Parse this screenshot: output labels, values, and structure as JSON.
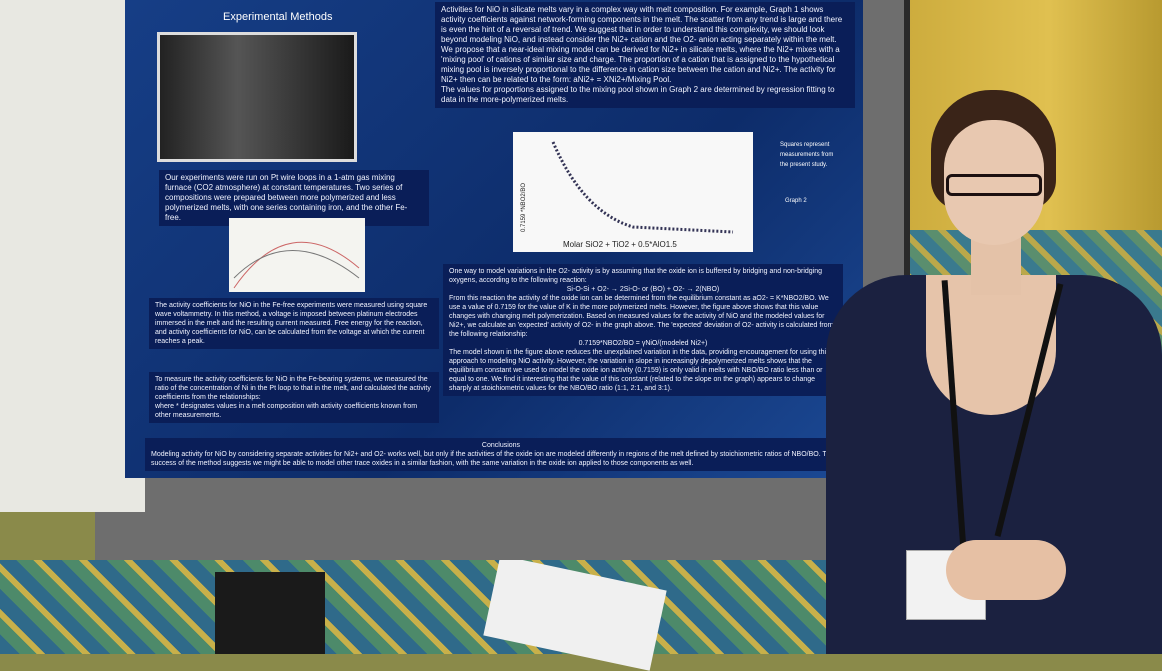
{
  "poster": {
    "section_title": "Experimental Methods",
    "intro": "Activities for NiO in silicate melts vary in a complex way with melt composition. For example, Graph 1 shows activity coefficients against network-forming components in the melt. The scatter from any trend is large and there is even the hint of a reversal of trend. We suggest that in order to understand this complexity, we should look beyond modeling NiO, and instead consider the Ni2+ cation and the O2- anion acting separately within the melt.",
    "model": "We propose that a near-ideal mixing model can be derived for Ni2+ in silicate melts, where the Ni2+ mixes with a 'mixing pool' of cations of similar size and charge. The proportion of a cation that is assigned to the hypothetical mixing pool is inversely proportional to the difference in cation size between the cation and Ni2+. The activity for Ni2+ then can be related to the form: aNi2+ = XNi2+/Mixing Pool.",
    "regression": "The values for proportions assigned to the mixing pool shown in Graph 2 are determined by regression fitting to data in the more-polymerized melts.",
    "methods": "Our experiments were run on Pt wire loops in a 1-atm gas mixing furnace (CO2 atmosphere) at constant temperatures. Two series of compositions were prepared between more polymerized and less polymerized melts, with one series containing iron, and the other Fe-free.",
    "voltammetry": "The activity coefficients for NiO in the Fe-free experiments were measured using square wave voltammetry. In this method, a voltage is imposed between platinum electrodes immersed in the melt and the resulting current measured. Free energy for the reaction, and activity coefficients for NiO, can be calculated from the voltage at which the current reaches a peak.",
    "fe_bearing": "To measure the activity coefficients for NiO in the Fe-bearing systems, we measured the ratio of the concentration of Ni in the Pt loop to that in the melt, and calculated the activity coefficients from the relationships:",
    "fe_note": "where * designates values in a melt composition with activity coefficients known from other measurements.",
    "oxide": "One way to model variations in the O2- activity is by assuming that the oxide ion is buffered by bridging and non-bridging oxygens, according to the following reaction:",
    "reaction": "Si-O-Si + O2- → 2Si-O- or (BO) + O2- → 2(NBO)",
    "oxide2": "From this reaction the activity of the oxide ion can be determined from the equilibrium constant as aO2- = K*NBO2/BO. We use a value of 0.7159 for the value of K in the more polymerized melts. However, the figure above shows that this value changes with changing melt polymerization. Based on measured values for the activity of NiO and the modeled values for Ni2+, we calculate an 'expected' activity of O2- in the graph above. The 'expected' deviation of O2- activity is calculated from the following relationship:",
    "equation": "0.7159*NBO2/BO = γNiO/(modeled Ni2+)",
    "oxide3": "The model shown in the figure above reduces the unexplained variation in the data, providing encouragement for using this approach to modeling NiO activity. However, the variation in slope in increasingly depolymerized melts shows that the equilibrium constant we used to model the oxide ion activity (0.7159) is only valid in melts with NBO/BO ratio less than or equal to one. We find it interesting that the value of this constant (related to the slope on the graph) appears to change sharply at stoichiometric values for the NBO/BO ratio (1:1, 2:1, and 3:1).",
    "conclusions_title": "Conclusions",
    "conclusions": "Modeling activity for NiO by considering separate activities for Ni2+ and O2- works well, but only if the activities of the oxide ion are modeled differently in regions of the melt defined by stoichiometric ratios of NBO/BO. The success of the method suggests we might be able to model other trace oxides in a similar fashion, with the same variation in the oxide ion applied to those components as well.",
    "graph2_ylabel": "0.7159 *NBO2/BO",
    "graph2_xlabel": "Molar SiO2 + TiO2 + 0.5*AlO1.5",
    "graph2_note": "Squares represent measurements from the present study.",
    "graph2_tag": "Graph 2",
    "graph2_ratios": [
      "2:1",
      "1:1"
    ]
  }
}
